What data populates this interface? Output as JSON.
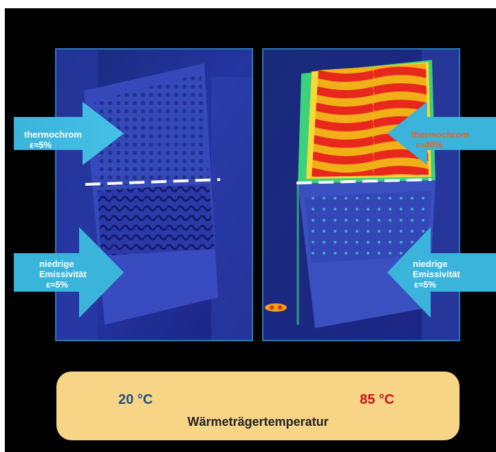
{
  "arrows": {
    "left_top": {
      "line1": "thermochrom",
      "line2": "ε≈5%"
    },
    "left_bottom": {
      "line1": "niedrige",
      "line2": "Emissivität",
      "line3": "ε≈5%"
    },
    "right_top": {
      "line1": "thermochrom",
      "line2": "ε≈40%"
    },
    "right_bottom": {
      "line1": "niedrige",
      "line2": "Emissivität",
      "line3": "ε≈5%"
    }
  },
  "temperatures": {
    "low": "20 °C",
    "high": "85 °C"
  },
  "caption": "Wärmeträgertemperatur",
  "colors": {
    "arrow": "#3bb4dc",
    "panel_border": "#2b78b8",
    "label_orange": "#e8641b",
    "temp_low": "#1e4f86",
    "temp_high": "#c9141b",
    "caption_box": "#f8d486"
  }
}
